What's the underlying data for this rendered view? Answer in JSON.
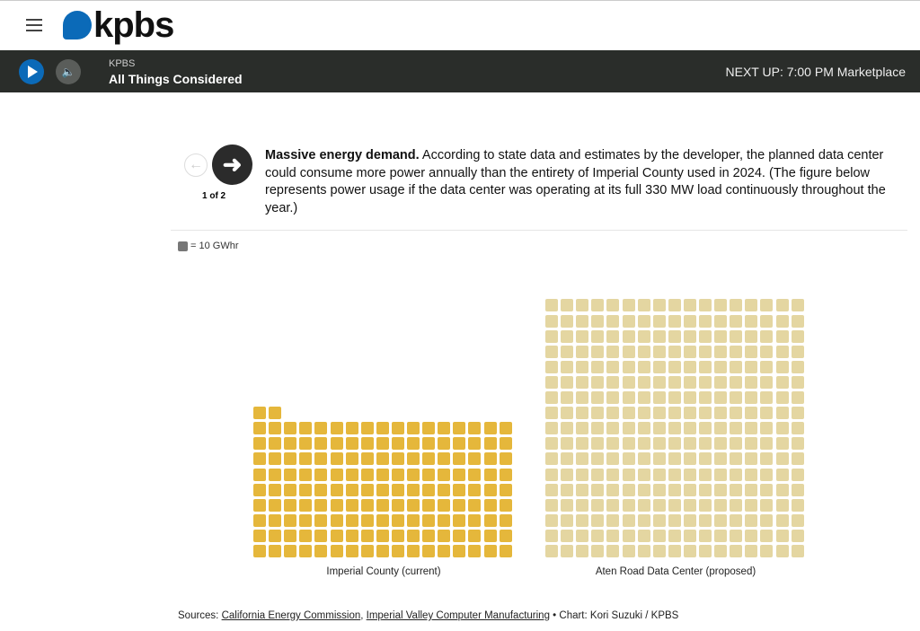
{
  "header": {
    "logo_text": "kpbs"
  },
  "player": {
    "station": "KPBS",
    "show": "All Things Considered",
    "next_up": "NEXT UP: 7:00 PM  Marketplace"
  },
  "slide": {
    "counter": "1 of 2",
    "title": "Massive energy demand.",
    "body": " According to state data and estimates by the developer, the planned data center could consume more power annually than the entirety of Imperial County used in 2024. (The figure below represents power usage if the data center was operating at its full 330 MW load continuously throughout the year.)"
  },
  "chart_data": {
    "type": "waffle",
    "unit_label": "= 10 GWhr",
    "unit_value": 10,
    "columns": 17,
    "series": [
      {
        "name": "Imperial County (current)",
        "squares": 155,
        "value_gwh": 1550,
        "color": "#e5b73b"
      },
      {
        "name": "Aten Road Data Center (proposed)",
        "squares": 289,
        "value_gwh": 2890,
        "color": "#e4d6a1"
      }
    ]
  },
  "sources": {
    "prefix": "Sources: ",
    "link1": "California Energy Commission",
    "sep": ", ",
    "link2": "Imperial Valley Computer Manufacturing",
    "suffix": " • Chart: Kori Suzuki / KPBS"
  }
}
